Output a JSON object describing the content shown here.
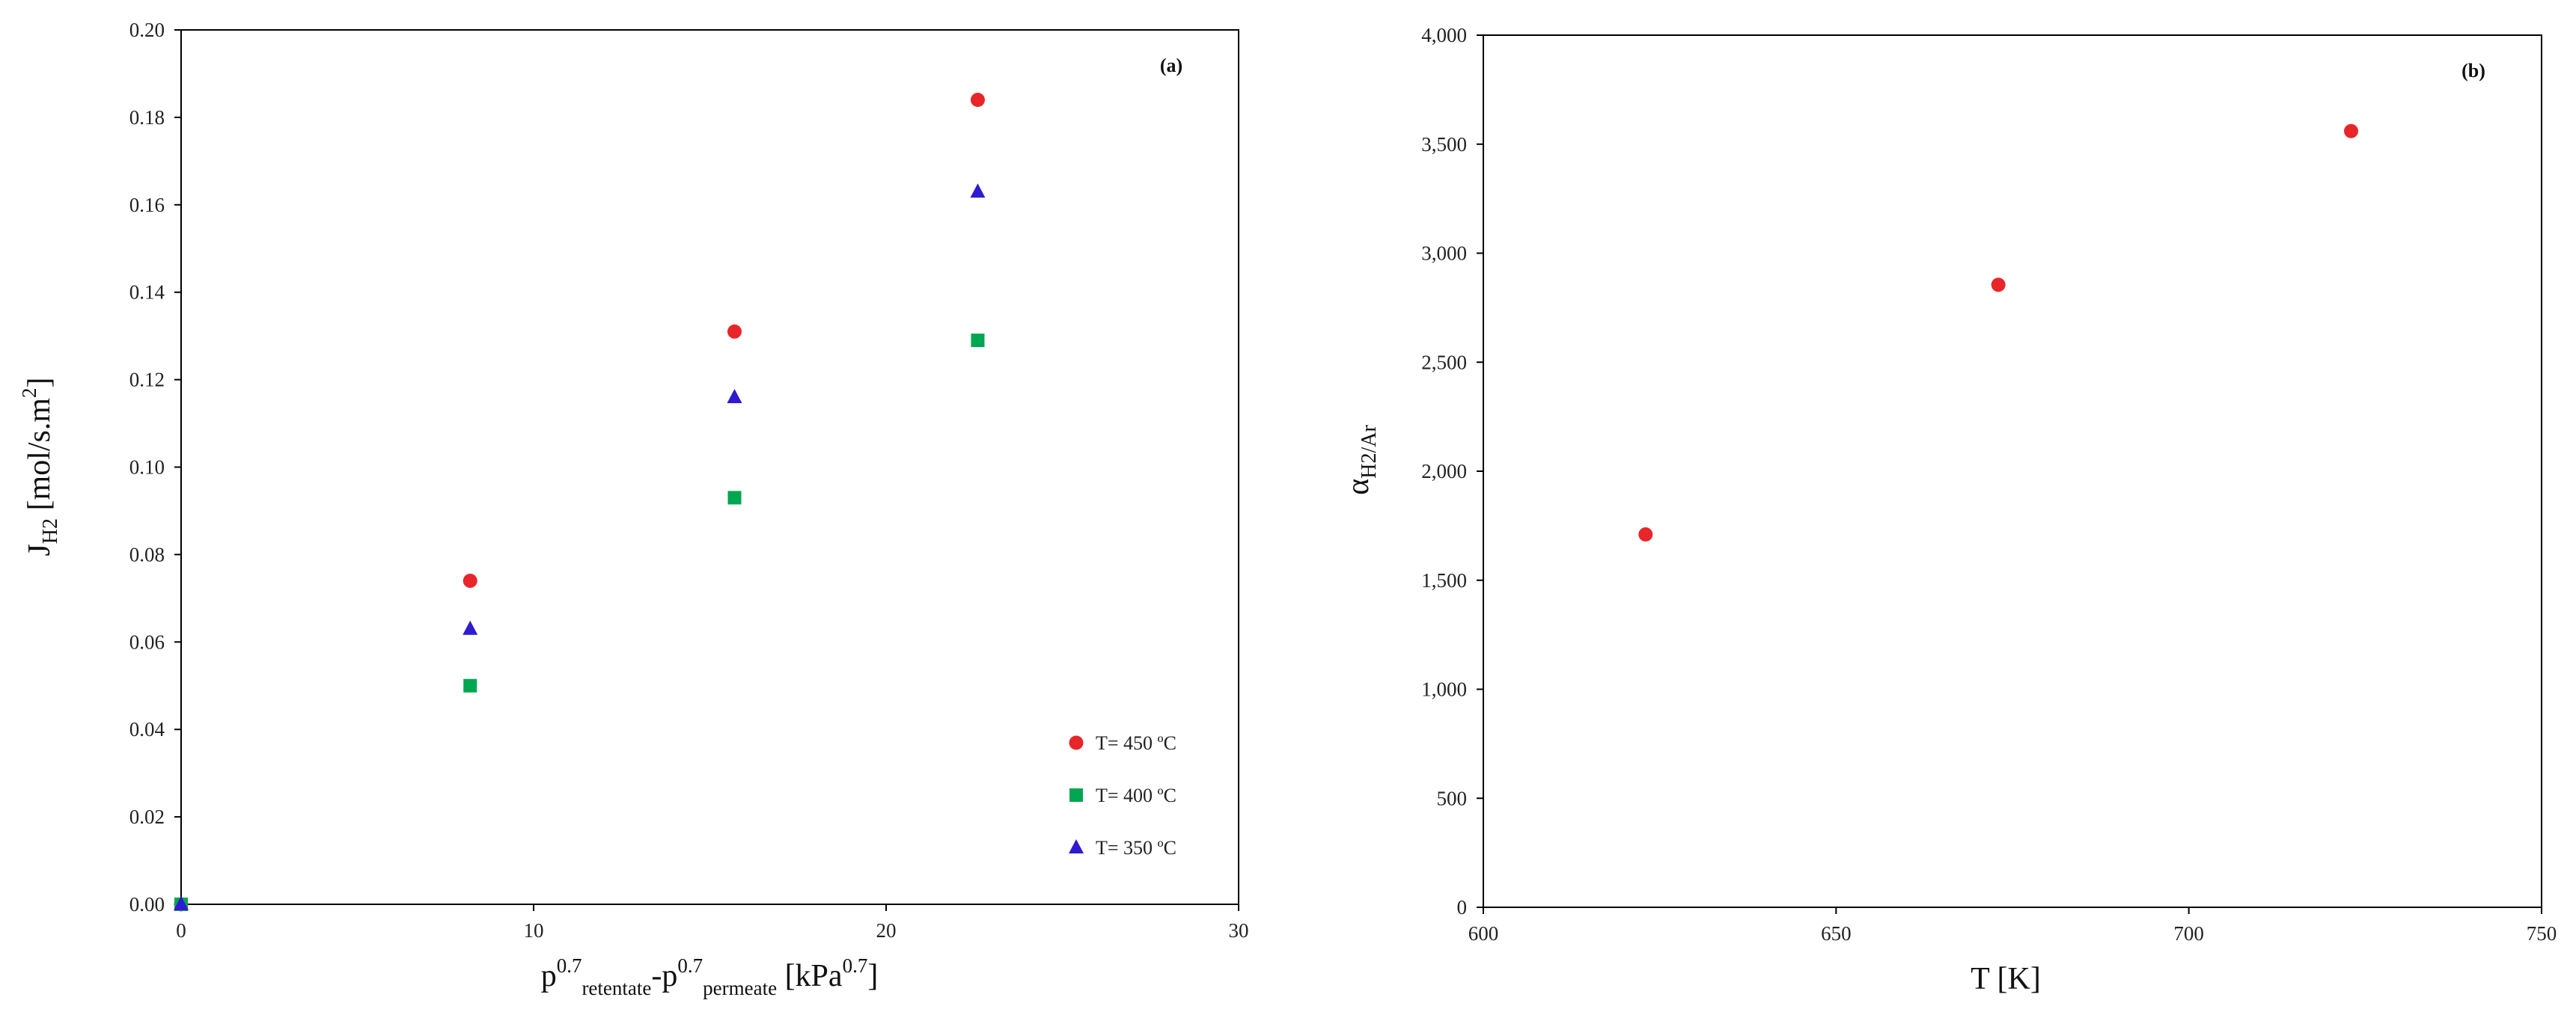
{
  "chart_data": [
    {
      "type": "scatter",
      "panel_label": "(a)",
      "xlim": [
        0,
        30
      ],
      "ylim": [
        0,
        0.2
      ],
      "x_ticks": [
        "0",
        "10",
        "20",
        "30"
      ],
      "y_ticks": [
        "0.00",
        "0.02",
        "0.04",
        "0.06",
        "0.08",
        "0.10",
        "0.12",
        "0.14",
        "0.16",
        "0.18",
        "0.20"
      ],
      "xlabel": {
        "p": "p",
        "exp1": "0.7",
        "sub1": "retentate",
        "dash": "-p",
        "exp2": "0.7",
        "sub2": "permeate",
        "unit_open": " [kPa",
        "unit_exp": "0.7",
        "unit_close": "]"
      },
      "ylabel": {
        "main": "J",
        "sub": "H2",
        "unit": " [mol/s.m",
        "unit_exp": "2",
        "unit_close": "]"
      },
      "legend_position": "bottom-right",
      "grid": false,
      "series": [
        {
          "name": "T= 450 ºC",
          "marker": "circle",
          "color": "#e8262a",
          "points": [
            [
              0,
              0.0
            ],
            [
              8.2,
              0.074
            ],
            [
              15.7,
              0.131
            ],
            [
              22.6,
              0.184
            ]
          ]
        },
        {
          "name": "T= 400 ºC",
          "marker": "square",
          "color": "#00a651",
          "points": [
            [
              0,
              0.0
            ],
            [
              8.2,
              0.05
            ],
            [
              15.7,
              0.093
            ],
            [
              22.6,
              0.129
            ]
          ]
        },
        {
          "name": "T= 350 ºC",
          "marker": "triangle",
          "color": "#2f1bd1",
          "points": [
            [
              0,
              0.0
            ],
            [
              8.2,
              0.063
            ],
            [
              15.7,
              0.116
            ],
            [
              22.6,
              0.163
            ]
          ]
        }
      ]
    },
    {
      "type": "scatter",
      "panel_label": "(b)",
      "xlim": [
        600,
        750
      ],
      "ylim": [
        0,
        4000
      ],
      "x_ticks": [
        "600",
        "650",
        "700",
        "750"
      ],
      "y_ticks": [
        "0",
        "500",
        "1,000",
        "1,500",
        "2,000",
        "2,500",
        "3,000",
        "3,500",
        "4,000"
      ],
      "xlabel": {
        "main": "T [K]"
      },
      "ylabel": {
        "main": "α",
        "sub": "H2/Ar"
      },
      "grid": false,
      "series": [
        {
          "marker": "circle",
          "color": "#e8262a",
          "points": [
            [
              623,
              1710
            ],
            [
              673,
              2855
            ],
            [
              723,
              3560
            ]
          ]
        }
      ]
    }
  ]
}
